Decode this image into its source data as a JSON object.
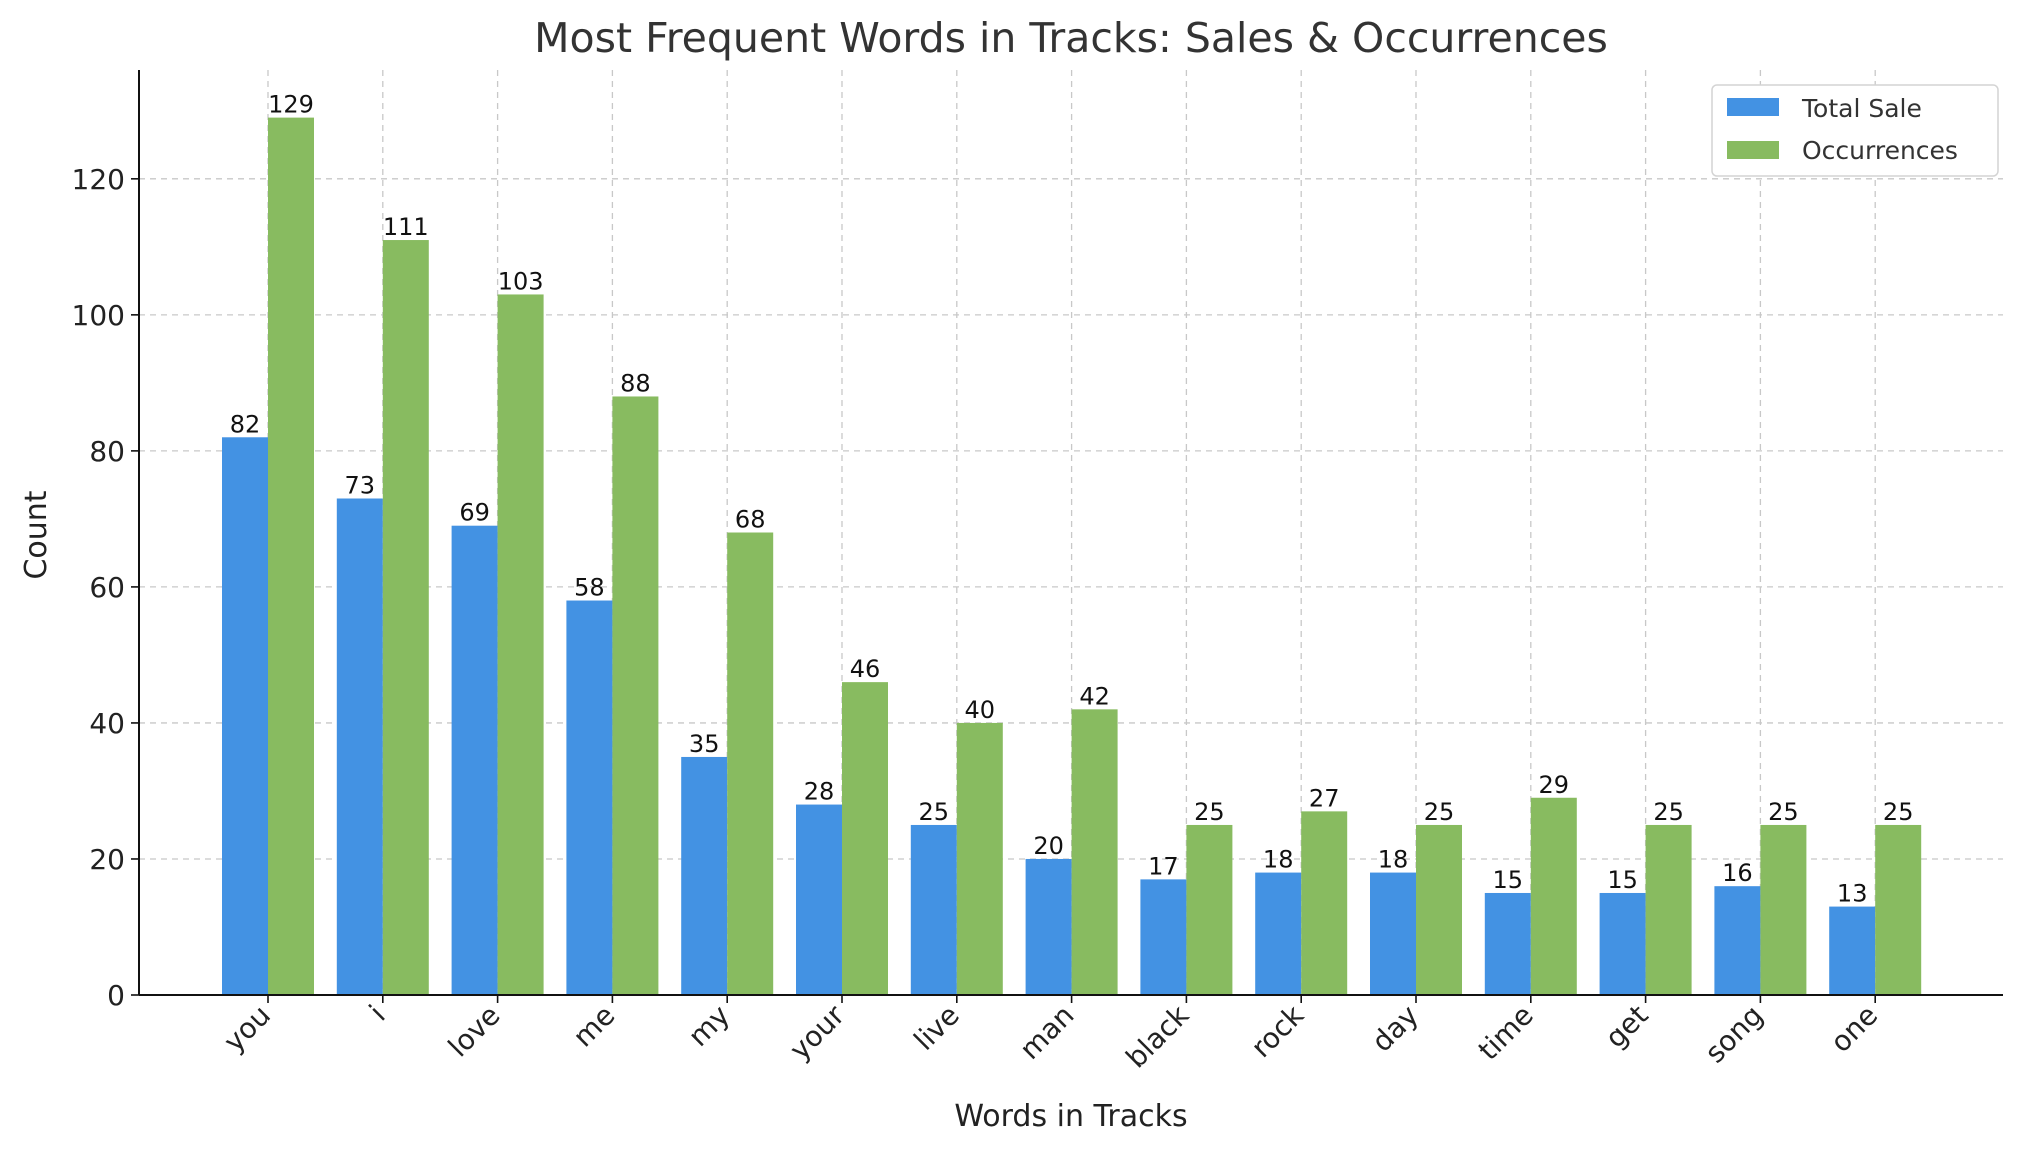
{
  "chart_data": {
    "type": "bar",
    "title": "Most Frequent Words in Tracks: Sales & Occurrences",
    "xlabel": "Words in Tracks",
    "ylabel": "Count",
    "ylim": [
      0,
      136
    ],
    "yticks": [
      0,
      20,
      40,
      60,
      80,
      100,
      120
    ],
    "grid": true,
    "legend_position": "top-right",
    "categories": [
      "you",
      "i",
      "love",
      "me",
      "my",
      "your",
      "live",
      "man",
      "black",
      "rock",
      "day",
      "time",
      "get",
      "song",
      "one"
    ],
    "series": [
      {
        "name": "Total Sale",
        "color": "#4392e3",
        "values": [
          82,
          73,
          69,
          58,
          35,
          28,
          25,
          20,
          17,
          18,
          18,
          15,
          15,
          16,
          13
        ]
      },
      {
        "name": "Occurrences",
        "color": "#88bb60",
        "values": [
          129,
          111,
          103,
          88,
          68,
          46,
          40,
          42,
          25,
          27,
          25,
          29,
          25,
          25,
          25
        ]
      }
    ]
  }
}
